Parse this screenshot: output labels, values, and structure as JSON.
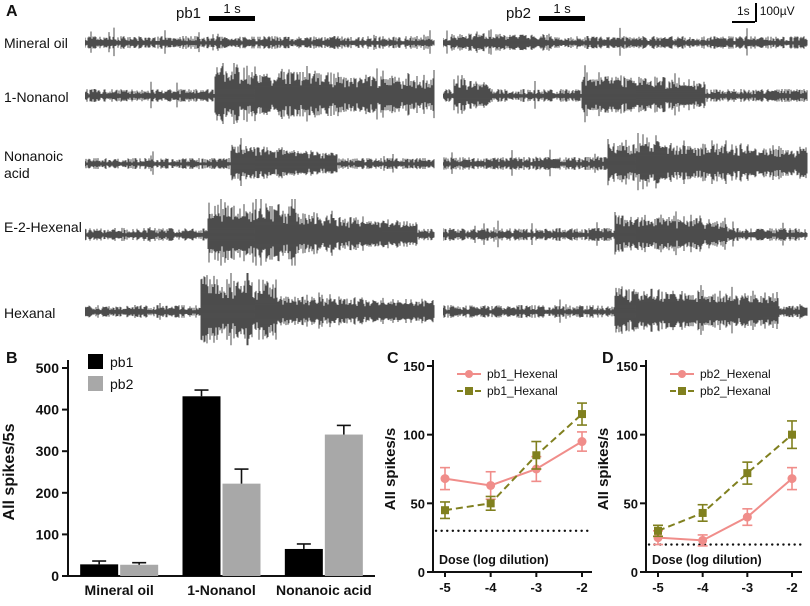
{
  "panels": {
    "A": "A",
    "B": "B",
    "C": "C",
    "D": "D"
  },
  "panelA": {
    "columns": [
      {
        "name": "pb1",
        "scale_label": "1 s"
      },
      {
        "name": "pb2",
        "scale_label": "1 s"
      }
    ],
    "scale_ref": {
      "time": "1s",
      "voltage": "100µV"
    },
    "rows": [
      {
        "label": "Mineral oil"
      },
      {
        "label": "1-Nonanol"
      },
      {
        "label": "Nonanoic acid"
      },
      {
        "label": "E-2-Hexenal"
      },
      {
        "label": "Hexanal"
      }
    ],
    "traces": [
      {
        "row": "Mineral oil",
        "cells": [
          {
            "noise": 7,
            "bursts": []
          },
          {
            "noise": 7,
            "bursts": [
              {
                "s": 0.02,
                "e": 0.3,
                "amp": 4,
                "decay": 0.5
              }
            ]
          }
        ]
      },
      {
        "row": "1-Nonanol",
        "cells": [
          {
            "noise": 7,
            "bursts": [
              {
                "s": 0.37,
                "e": 1.0,
                "amp": 24,
                "decay": 0.45
              }
            ]
          },
          {
            "noise": 7,
            "bursts": [
              {
                "s": 0.03,
                "e": 0.13,
                "amp": 12,
                "decay": 0.3
              },
              {
                "s": 0.38,
                "e": 0.72,
                "amp": 20,
                "decay": 0.55
              }
            ]
          }
        ]
      },
      {
        "row": "Nonanoic acid",
        "cells": [
          {
            "noise": 6,
            "bursts": [
              {
                "s": 0.42,
                "e": 0.72,
                "amp": 16,
                "decay": 0.6
              }
            ]
          },
          {
            "noise": 7,
            "bursts": [
              {
                "s": 0.45,
                "e": 1.0,
                "amp": 20,
                "decay": 0.5
              }
            ]
          }
        ]
      },
      {
        "row": "E-2-Hexenal",
        "cells": [
          {
            "noise": 7,
            "bursts": [
              {
                "s": 0.35,
                "e": 0.6,
                "amp": 28,
                "decay": 0.15
              },
              {
                "s": 0.6,
                "e": 0.95,
                "amp": 18,
                "decay": 0.6
              }
            ]
          },
          {
            "noise": 7,
            "bursts": [
              {
                "s": 0.47,
                "e": 0.78,
                "amp": 18,
                "decay": 0.55
              }
            ]
          }
        ]
      },
      {
        "row": "Hexanal",
        "cells": [
          {
            "noise": 7,
            "bursts": [
              {
                "s": 0.33,
                "e": 0.55,
                "amp": 32,
                "decay": 0.2
              },
              {
                "s": 0.55,
                "e": 1.0,
                "amp": 12,
                "decay": 0.6
              }
            ]
          },
          {
            "noise": 7,
            "bursts": [
              {
                "s": 0.47,
                "e": 0.92,
                "amp": 20,
                "decay": 0.45
              }
            ]
          }
        ]
      }
    ]
  },
  "chart_data": [
    {
      "id": "B",
      "type": "bar",
      "ylabel": "All spikes/5s",
      "ylim": [
        0,
        500
      ],
      "yticks": [
        0,
        100,
        200,
        300,
        400,
        500
      ],
      "categories": [
        "Mineral oil",
        "1-Nonanol",
        "Nonanoic acid"
      ],
      "series": [
        {
          "name": "pb1",
          "color": "#000000",
          "values": [
            28,
            432,
            65
          ],
          "errors": [
            8,
            15,
            12
          ]
        },
        {
          "name": "pb2",
          "color": "#a8a8a8",
          "values": [
            27,
            222,
            340
          ],
          "errors": [
            5,
            35,
            22
          ]
        }
      ],
      "legend_position": "top-left",
      "grid": false
    },
    {
      "id": "C",
      "type": "line",
      "ylabel": "All spikes/s",
      "xlabel": "Dose (log dilution)",
      "ylim": [
        0,
        150
      ],
      "yticks": [
        0,
        50,
        100,
        150
      ],
      "x": [
        -5,
        -4,
        -3,
        -2
      ],
      "baseline": 30,
      "series": [
        {
          "name": "pb1_Hexenal",
          "color": "#f08d8a",
          "style": "solid",
          "marker": "circle",
          "values": [
            68,
            63,
            75,
            95
          ],
          "errors": [
            8,
            10,
            9,
            7
          ]
        },
        {
          "name": "pb1_Hexanal",
          "color": "#80801f",
          "style": "dashed",
          "marker": "square",
          "values": [
            45,
            50,
            85,
            115
          ],
          "errors": [
            6,
            5,
            10,
            8
          ]
        }
      ],
      "legend_position": "top",
      "grid": false
    },
    {
      "id": "D",
      "type": "line",
      "ylabel": "All spikes/s",
      "xlabel": "Dose (log dilution)",
      "ylim": [
        0,
        150
      ],
      "yticks": [
        0,
        50,
        100,
        150
      ],
      "x": [
        -5,
        -4,
        -3,
        -2
      ],
      "baseline": 20,
      "series": [
        {
          "name": "pb2_Hexenal",
          "color": "#f08d8a",
          "style": "solid",
          "marker": "circle",
          "values": [
            25,
            23,
            40,
            68
          ],
          "errors": [
            5,
            4,
            6,
            8
          ]
        },
        {
          "name": "pb2_Hexanal",
          "color": "#80801f",
          "style": "dashed",
          "marker": "square",
          "values": [
            30,
            43,
            72,
            100
          ],
          "errors": [
            4,
            6,
            8,
            10
          ]
        }
      ],
      "legend_position": "top",
      "grid": false
    }
  ]
}
